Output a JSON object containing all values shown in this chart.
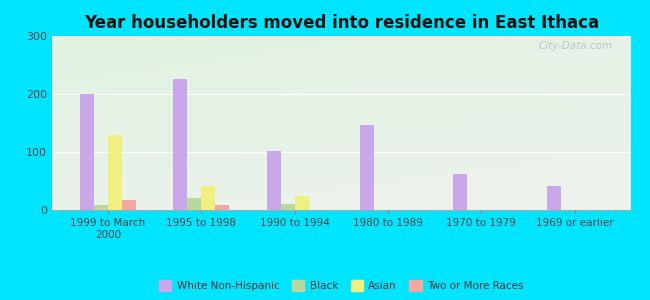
{
  "title": "Year householders moved into residence in East Ithaca",
  "categories": [
    "1999 to March\n2000",
    "1995 to 1998",
    "1990 to 1994",
    "1980 to 1989",
    "1970 to 1979",
    "1969 or earlier"
  ],
  "series": {
    "White Non-Hispanic": [
      200,
      225,
      102,
      147,
      62,
      42
    ],
    "Black": [
      8,
      20,
      10,
      0,
      0,
      0
    ],
    "Asian": [
      130,
      42,
      25,
      0,
      0,
      0
    ],
    "Two or More Races": [
      17,
      8,
      0,
      0,
      0,
      0
    ]
  },
  "colors": {
    "White Non-Hispanic": "#c8a8e8",
    "Black": "#b8d8a0",
    "Asian": "#f0f080",
    "Two or More Races": "#f0a8a0"
  },
  "ylim": [
    0,
    300
  ],
  "yticks": [
    0,
    100,
    200,
    300
  ],
  "outer_background": "#00e5ff",
  "bar_width": 0.15,
  "watermark": "City-Data.com",
  "legend_labels": [
    "White Non-Hispanic",
    "Black",
    "Asian",
    "Two or More Races"
  ]
}
